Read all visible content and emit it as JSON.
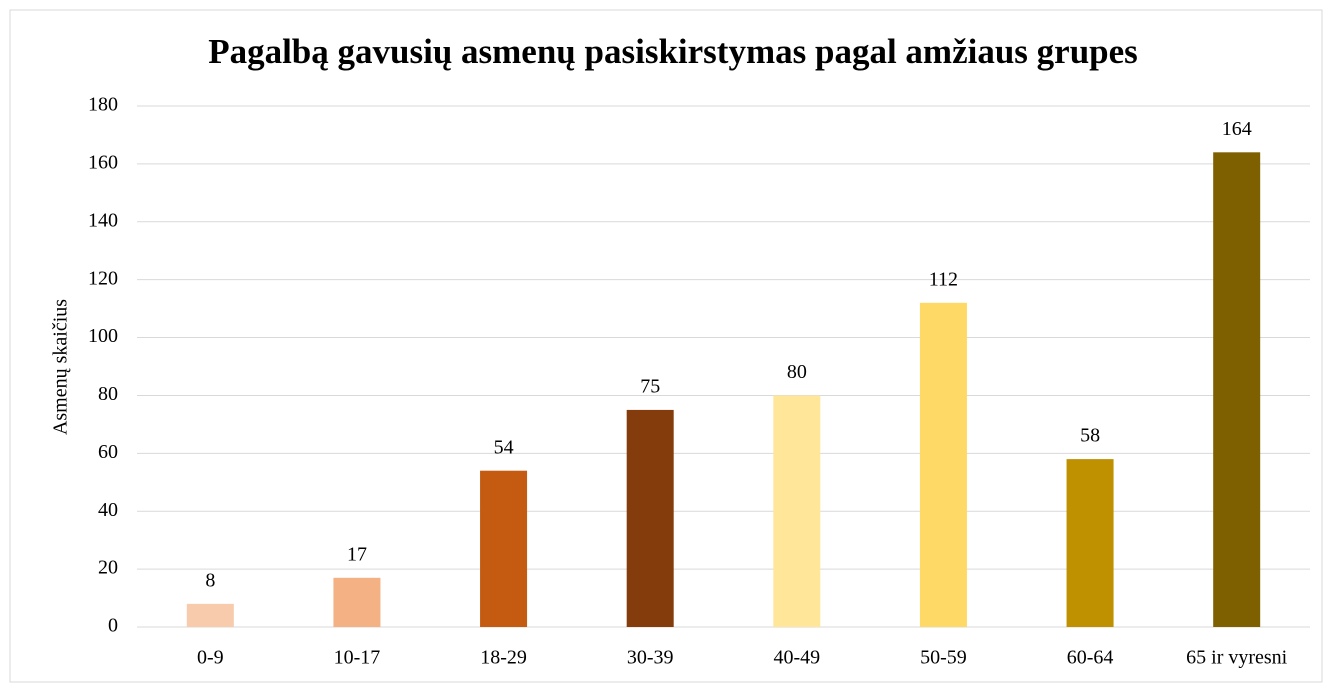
{
  "chart_data": {
    "type": "bar",
    "title": "Pagalbą gavusių asmenų pasiskirstymas pagal amžiaus grupes",
    "ylabel": "Asmenų skaičius",
    "categories": [
      "0-9",
      "10-17",
      "18-29",
      "30-39",
      "40-49",
      "50-59",
      "60-64",
      "65 ir vyresni"
    ],
    "values": [
      8,
      17,
      54,
      75,
      80,
      112,
      58,
      164
    ],
    "colors": [
      "#F8CBAD",
      "#F4B183",
      "#C55A11",
      "#843C0C",
      "#FFE699",
      "#FFD966",
      "#BF9000",
      "#7F6000"
    ],
    "ylim": [
      0,
      180
    ],
    "yticks": [
      0,
      20,
      40,
      60,
      80,
      100,
      120,
      140,
      160,
      180
    ],
    "grid": true,
    "data_labels": true
  }
}
